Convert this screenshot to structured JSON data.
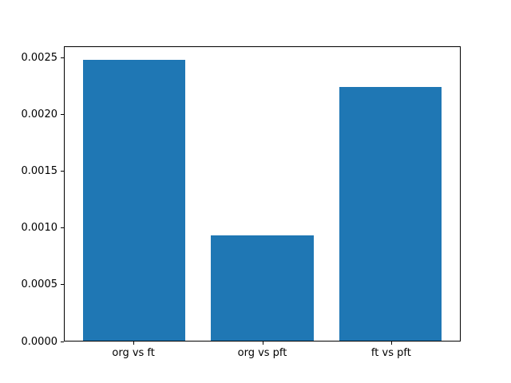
{
  "figure": {
    "background_color": "#ffffff",
    "frame_color": "#000000",
    "text_color": "#000000"
  },
  "chart_data": {
    "type": "bar",
    "title": "",
    "xlabel": "",
    "ylabel": "",
    "categories": [
      "org vs ft",
      "org vs pft",
      "ft vs pft"
    ],
    "values": [
      0.00249,
      0.00093,
      0.00225
    ],
    "bar_color": "#1f77b4",
    "bar_width_fraction": 0.8,
    "x_range": [
      -0.54,
      2.54
    ],
    "ylim": [
      0,
      0.0026
    ],
    "yticks": [
      0.0,
      0.0005,
      0.001,
      0.0015,
      0.002,
      0.0025
    ],
    "ytick_labels": [
      "0.0000",
      "0.0005",
      "0.0010",
      "0.0015",
      "0.0020",
      "0.0025"
    ],
    "grid": false,
    "legend": null
  }
}
